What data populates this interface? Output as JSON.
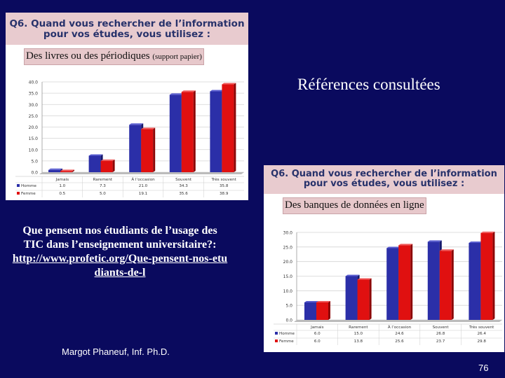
{
  "slide": {
    "heading": "Références consultées",
    "source_line1": "Que pensent nos étudiants de l’usage des",
    "source_line2": "TIC dans l’enseignement universitaire?:",
    "source_link": "http://www.profetic.org/Que-pensent-nos-etudiants-de-l",
    "author": "Margot Phaneuf, Inf. Ph.D.",
    "page_number": "76"
  },
  "charts_text": [
    {
      "q_line1": "Q6. Quand vous rechercher de l’information",
      "q_line2": "pour vos études, vous utilisez :",
      "subtitle": "Des livres ou des périodiques",
      "subtitle_note": "(support papier)",
      "table_rows": [
        {
          "label": "Homme",
          "values": [
            "1.0",
            "7.3",
            "21.0",
            "34.3",
            "35.8"
          ]
        },
        {
          "label": "Femme",
          "values": [
            "0.5",
            "5.0",
            "19.1",
            "35.6",
            "38.9"
          ]
        }
      ]
    },
    {
      "q_line1": "Q6. Quand vous rechercher de l’information",
      "q_line2": "pour vos études, vous utilisez :",
      "subtitle": "Des banques de données en ligne",
      "subtitle_note": "",
      "table_rows": [
        {
          "label": "Homme",
          "values": [
            "6.0",
            "15.0",
            "24.6",
            "26.8",
            "26.4"
          ]
        },
        {
          "label": "Femme",
          "values": [
            "6.0",
            "13.8",
            "25.6",
            "23.7",
            "29.8"
          ]
        }
      ]
    }
  ],
  "chart_data": [
    {
      "type": "bar",
      "title": "Q6. Quand vous rechercher de l’information pour vos études, vous utilisez :",
      "subtitle": "Des livres ou des périodiques (support papier)",
      "categories": [
        "Jamais",
        "Rarement",
        "À l’occasion",
        "Souvent",
        "Très souvent"
      ],
      "series": [
        {
          "name": "Homme",
          "values": [
            1.0,
            7.3,
            21.0,
            34.3,
            35.8
          ]
        },
        {
          "name": "Femme",
          "values": [
            0.5,
            5.0,
            19.1,
            35.6,
            38.9
          ]
        }
      ],
      "yticks": [
        "0.0",
        "5.0",
        "10.0",
        "15.0",
        "20.0",
        "25.0",
        "30.0",
        "35.0",
        "40.0"
      ],
      "ylim": [
        0,
        40
      ],
      "grid": true,
      "colors": {
        "Homme": "#2b2fa8",
        "Femme": "#e01010"
      }
    },
    {
      "type": "bar",
      "title": "Q6. Quand vous rechercher de l’information pour vos études, vous utilisez :",
      "subtitle": "Des banques de données en ligne",
      "categories": [
        "Jamais",
        "Rarement",
        "À l’occasion",
        "Souvent",
        "Très souvent"
      ],
      "series": [
        {
          "name": "Homme",
          "values": [
            6.0,
            15.0,
            24.6,
            26.8,
            26.4
          ]
        },
        {
          "name": "Femme",
          "values": [
            6.0,
            13.8,
            25.6,
            23.7,
            29.8
          ]
        }
      ],
      "yticks": [
        "0.0",
        "5.0",
        "10.0",
        "15.0",
        "20.0",
        "25.0",
        "30.0"
      ],
      "ylim": [
        0,
        30
      ],
      "grid": true,
      "colors": {
        "Homme": "#2b2fa8",
        "Femme": "#e01010"
      }
    }
  ]
}
